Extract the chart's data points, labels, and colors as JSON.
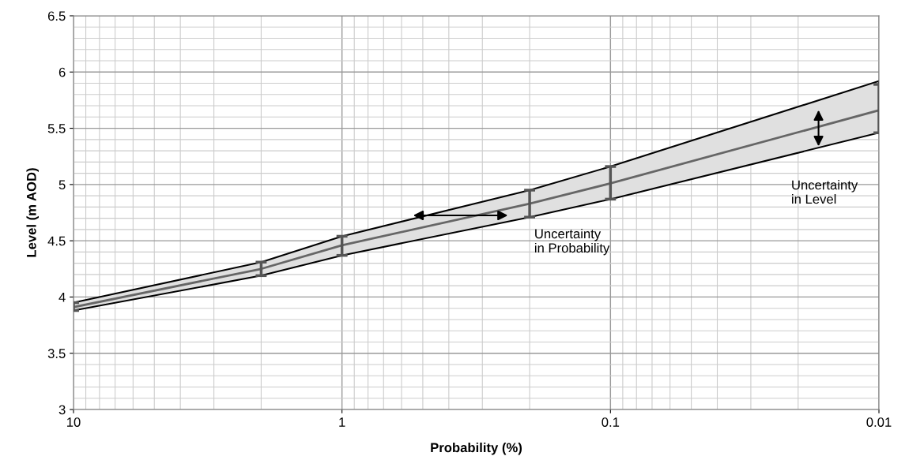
{
  "chart_data": {
    "type": "line",
    "xlabel": "Probability (%)",
    "ylabel": "Level (m AOD)",
    "log": "x",
    "grid": true,
    "marker": "none",
    "line_style": "solid",
    "xlim": [
      10,
      0.01
    ],
    "xticks": [
      10,
      1,
      0.1,
      0.01
    ],
    "ylim": [
      3,
      6.5
    ],
    "yticks": [
      3,
      3.5,
      4,
      4.5,
      5,
      5.5,
      6,
      6.5
    ],
    "series": [
      {
        "color": "#666666",
        "x": [
          10,
          2,
          1,
          0.2,
          0.1,
          0.01
        ],
        "values": [
          3.91,
          4.25,
          4.46,
          4.83,
          5.01,
          5.66
        ],
        "lower": [
          3.88,
          4.19,
          4.37,
          4.71,
          4.87,
          5.46
        ],
        "upper": [
          3.95,
          4.31,
          4.54,
          4.95,
          5.16,
          5.92
        ],
        "errors": [
          [
            3.88,
            3.95
          ],
          [
            4.19,
            4.31
          ],
          [
            4.37,
            4.54
          ],
          [
            4.71,
            4.95
          ],
          [
            4.87,
            5.16
          ],
          [
            5.46,
            5.89
          ]
        ]
      }
    ],
    "annotations": [
      "Uncertainty\nin Probability",
      "Uncertainty\nin Level"
    ]
  }
}
